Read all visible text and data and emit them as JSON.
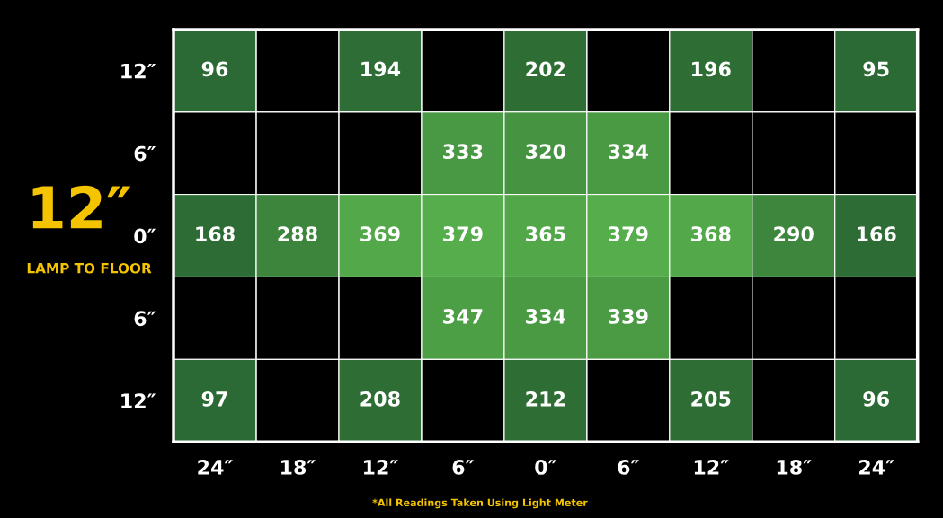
{
  "chart_data": {
    "type": "heatmap",
    "title": "12″",
    "subtitle": "LAMP TO FLOOR",
    "categories": [
      "24″",
      "18″",
      "12″",
      "6″",
      "0″",
      "6″",
      "12″",
      "18″",
      "24″"
    ],
    "y_categories": [
      "12″",
      "6″",
      "0″",
      "6″",
      "12″"
    ],
    "cells": [
      [
        96,
        null,
        194,
        null,
        202,
        null,
        196,
        null,
        95
      ],
      [
        null,
        null,
        null,
        333,
        320,
        334,
        null,
        null,
        null
      ],
      [
        168,
        288,
        369,
        379,
        365,
        379,
        368,
        290,
        166
      ],
      [
        null,
        null,
        null,
        347,
        334,
        339,
        null,
        null,
        null
      ],
      [
        97,
        null,
        208,
        null,
        212,
        null,
        205,
        null,
        96
      ]
    ],
    "data_labels": true,
    "grid": true,
    "annotations": [
      "*All Readings Taken Using Light Meter"
    ]
  }
}
